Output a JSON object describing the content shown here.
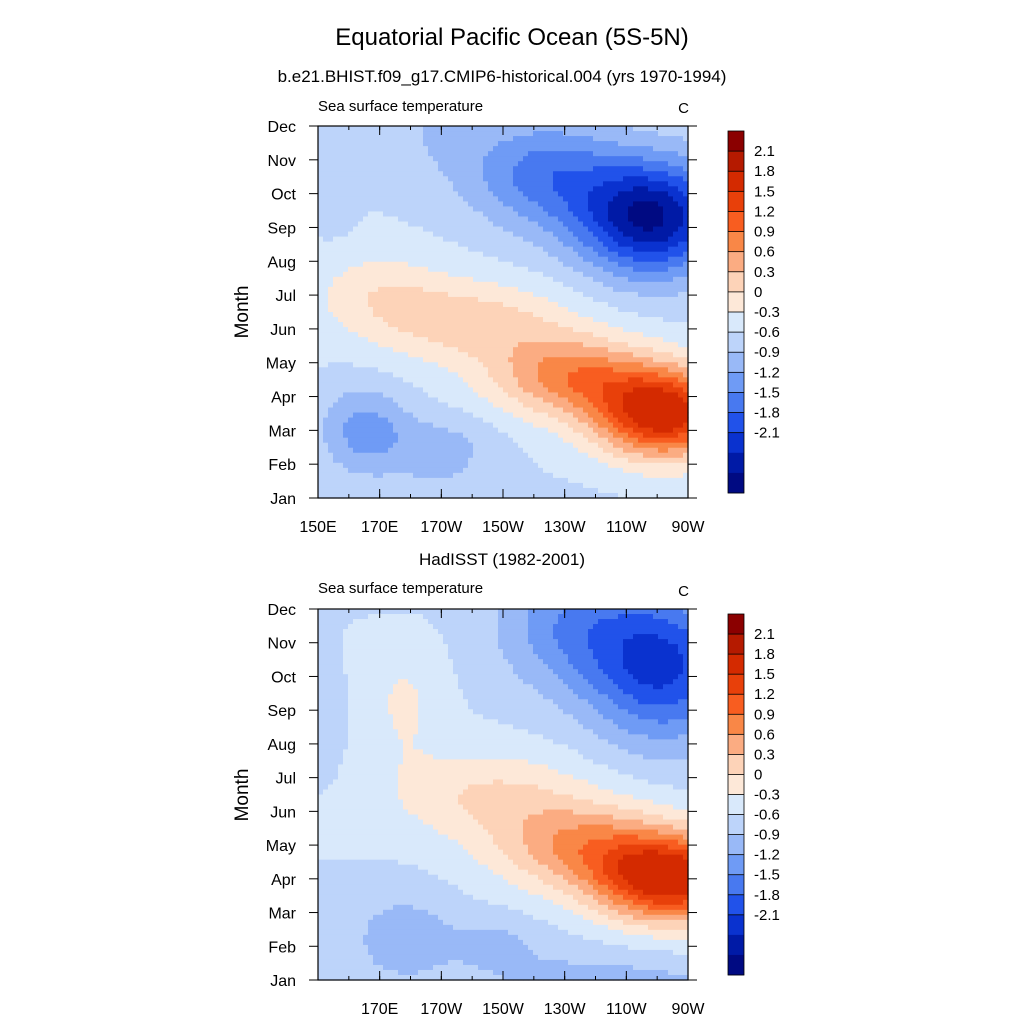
{
  "figure": {
    "title": "Equatorial Pacific Ocean (5S-5N)"
  },
  "chart_data": [
    {
      "type": "heatmap",
      "title": "b.e21.BHIST.f09_g17.CMIP6-historical.004 (yrs 1970-1994)",
      "variable": "Sea surface temperature",
      "units": "C",
      "ylabel": "Month",
      "x_tick_labels": [
        "150E",
        "170E",
        "170W",
        "150W",
        "130W",
        "110W",
        "90W"
      ],
      "x_tick_values": [
        150,
        170,
        190,
        210,
        230,
        250,
        270
      ],
      "xlim": [
        150,
        270
      ],
      "y_tick_labels": [
        "Jan",
        "Feb",
        "Mar",
        "Apr",
        "May",
        "Jun",
        "Jul",
        "Aug",
        "Sep",
        "Oct",
        "Nov",
        "Dec"
      ],
      "features": [
        {
          "lon": 262,
          "month": 2.5,
          "ampl": 2.4,
          "slon": 22,
          "smon": 1.3
        },
        {
          "lon": 232,
          "month": 3.6,
          "ampl": 1.3,
          "slon": 26,
          "smon": 1.2
        },
        {
          "lon": 200,
          "month": 5.2,
          "ampl": 0.75,
          "slon": 32,
          "smon": 1.2
        },
        {
          "lon": 170,
          "month": 6.1,
          "ampl": 0.45,
          "slon": 22,
          "smon": 1.2
        },
        {
          "lon": 258,
          "month": 8.3,
          "ampl": -2.15,
          "slon": 24,
          "smon": 1.7
        },
        {
          "lon": 223,
          "month": 9.6,
          "ampl": -1.0,
          "slon": 24,
          "smon": 1.6
        },
        {
          "lon": 190,
          "month": 11.0,
          "ampl": -0.3,
          "slon": 16,
          "smon": 1.6
        },
        {
          "lon": 165,
          "month": 2.0,
          "ampl": -0.72,
          "slon": 14,
          "smon": 1.3
        },
        {
          "lon": 190,
          "month": 1.5,
          "ampl": -0.4,
          "slon": 18,
          "smon": 1.0
        },
        {
          "lon": 155,
          "month": 9.0,
          "ampl": -0.2,
          "slon": 6,
          "smon": 1.2
        }
      ]
    },
    {
      "type": "heatmap",
      "title": "HadISST (1982-2001)",
      "variable": "Sea surface temperature",
      "units": "C",
      "ylabel": "Month",
      "x_tick_labels": [
        "170E",
        "170W",
        "150W",
        "130W",
        "110W",
        "90W"
      ],
      "x_tick_values": [
        170,
        190,
        210,
        230,
        250,
        270
      ],
      "xlim": [
        150,
        270
      ],
      "y_tick_labels": [
        "Jan",
        "Feb",
        "Mar",
        "Apr",
        "May",
        "Jun",
        "Jul",
        "Aug",
        "Sep",
        "Oct",
        "Nov",
        "Dec"
      ],
      "features": [
        {
          "lon": 264,
          "month": 3.0,
          "ampl": 2.4,
          "slon": 24,
          "smon": 1.3
        },
        {
          "lon": 235,
          "month": 4.0,
          "ampl": 1.1,
          "slon": 28,
          "smon": 1.3
        },
        {
          "lon": 205,
          "month": 5.5,
          "ampl": 0.6,
          "slon": 32,
          "smon": 1.3
        },
        {
          "lon": 178,
          "month": 8.2,
          "ampl": 0.35,
          "slon": 12,
          "smon": 1.8
        },
        {
          "lon": 262,
          "month": 9.3,
          "ampl": -1.55,
          "slon": 24,
          "smon": 2.2
        },
        {
          "lon": 232,
          "month": 10.5,
          "ampl": -0.8,
          "slon": 24,
          "smon": 1.9
        },
        {
          "lon": 178,
          "month": 1.2,
          "ampl": -0.5,
          "slon": 18,
          "smon": 1.4
        },
        {
          "lon": 208,
          "month": 1.0,
          "ampl": -0.35,
          "slon": 14,
          "smon": 0.9
        },
        {
          "lon": 152,
          "month": 7.6,
          "ampl": -0.2,
          "slon": 6,
          "smon": 1.6
        }
      ]
    }
  ],
  "colorbar": {
    "labels": [
      "2.1",
      "1.8",
      "1.5",
      "1.2",
      "0.9",
      "0.6",
      "0.3",
      "0",
      "-0.3",
      "-0.6",
      "-0.9",
      "-1.2",
      "-1.5",
      "-1.8",
      "-2.1"
    ],
    "levels": [
      2.1,
      1.8,
      1.5,
      1.2,
      0.9,
      0.6,
      0.3,
      0,
      -0.3,
      -0.6,
      -0.9,
      -1.2,
      -1.5,
      -1.8,
      -2.1
    ],
    "colors": [
      "#8b0000",
      "#b51a00",
      "#d42a00",
      "#e8400a",
      "#f85d20",
      "#f98747",
      "#fbac82",
      "#fdd3b8",
      "#fde8d8",
      "#d9e9fb",
      "#bdd4fa",
      "#99b9f7",
      "#6f9bf5",
      "#4879f0",
      "#2152ea",
      "#0a32cf",
      "#001aa6",
      "#000a82"
    ]
  }
}
